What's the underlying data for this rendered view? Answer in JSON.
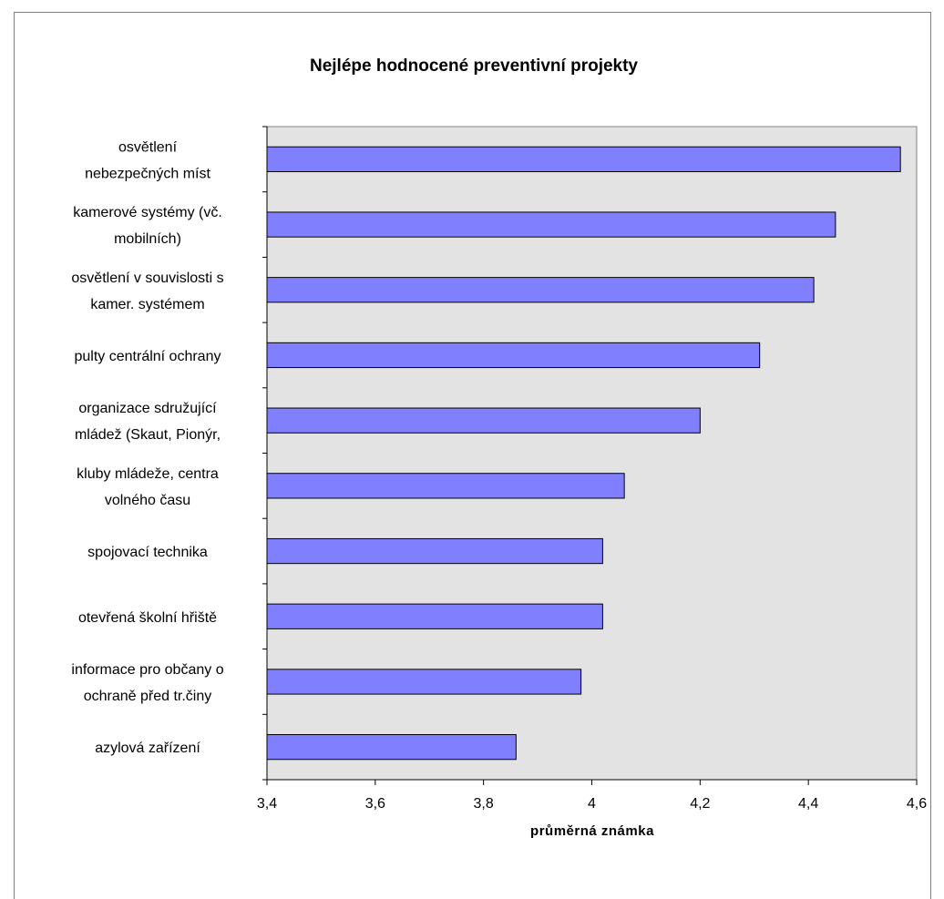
{
  "chart_data": {
    "type": "bar",
    "orientation": "horizontal",
    "title": "Nejlépe hodnocené preventivní projekty",
    "xlabel": "průměrná známka",
    "ylabel": "",
    "xlim": [
      3.4,
      4.6
    ],
    "x_ticks": [
      "3,4",
      "3,6",
      "3,8",
      "4",
      "4,2",
      "4,4",
      "4,6"
    ],
    "x_tick_values": [
      3.4,
      3.6,
      3.8,
      4.0,
      4.2,
      4.4,
      4.6
    ],
    "grid": false,
    "legend": "none",
    "categories": [
      [
        "osvětlení",
        "nebezpečných míst"
      ],
      [
        "kamerové systémy (vč.",
        "mobilních)"
      ],
      [
        "osvětlení v souvislosti s",
        "kamer. systémem"
      ],
      [
        "pulty centrální ochrany"
      ],
      [
        "organizace sdružující",
        "mládež (Skaut, Pionýr,"
      ],
      [
        "kluby mládeže, centra",
        "volného času"
      ],
      [
        "spojovací technika"
      ],
      [
        "otevřená školní hřiště"
      ],
      [
        "informace pro občany o",
        "ochraně před tr.činy"
      ],
      [
        "azylová zařízení"
      ]
    ],
    "values": [
      4.57,
      4.45,
      4.41,
      4.31,
      4.2,
      4.06,
      4.02,
      4.02,
      3.98,
      3.86
    ],
    "colors": {
      "bar": "#8080ff",
      "bar_outline": "#000000",
      "plot_area": "#e3e3e3"
    }
  }
}
